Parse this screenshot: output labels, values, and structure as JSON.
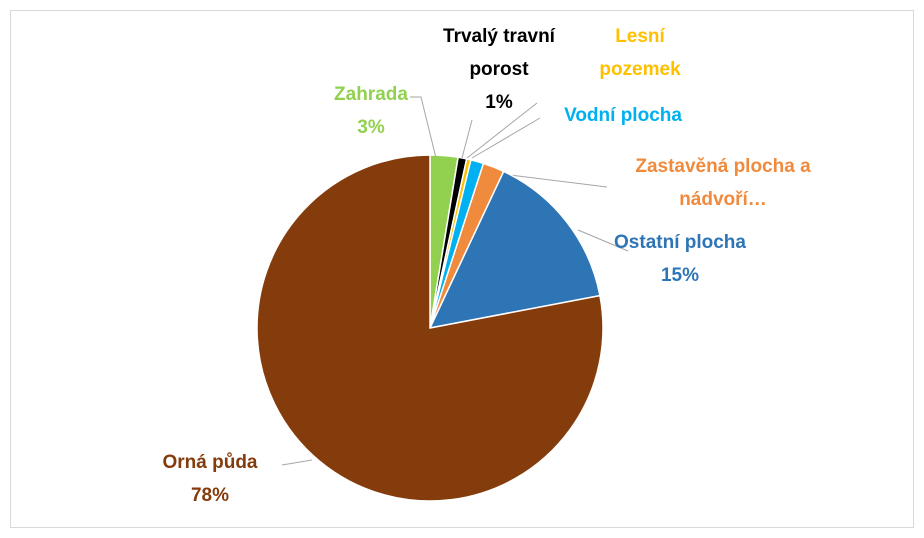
{
  "chart_data": {
    "type": "pie",
    "categories": [
      "Zahrada",
      "Trvalý travní porost",
      "Lesní pozemek",
      "Vodní plocha",
      "Zastavěná plocha a nádvoří…",
      "Ostatní plocha",
      "Orná půda"
    ],
    "values": [
      2.6,
      0.8,
      0.4,
      1.2,
      2,
      15,
      78
    ],
    "value_labels": [
      "3%",
      "1%",
      null,
      null,
      null,
      "15%",
      "78%"
    ],
    "colors": [
      "#92d050",
      "#000000",
      "#ffc000",
      "#00b0f0",
      "#f08a3c",
      "#2e75b6",
      "#843c0c"
    ]
  }
}
